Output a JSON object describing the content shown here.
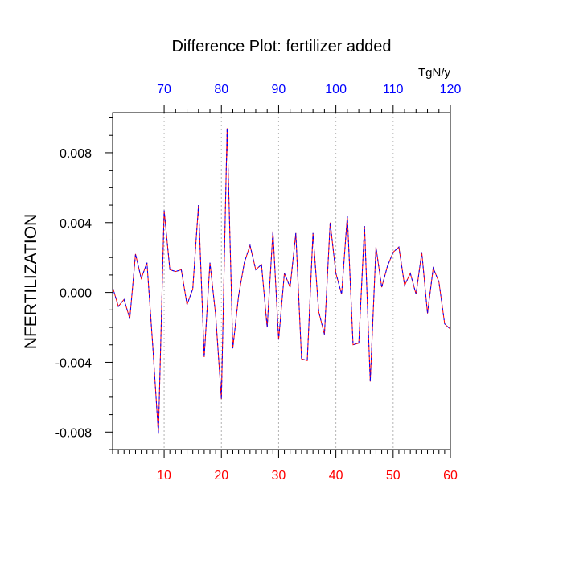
{
  "chart_data": {
    "type": "line",
    "title": "Difference Plot: fertilizer added",
    "ylabel": "NFERTILIZATION",
    "top_axis_unit": "TgN/y",
    "xlim": [
      1,
      60
    ],
    "ylim": [
      -0.009,
      0.0103
    ],
    "x_ticks": [
      10,
      20,
      30,
      40,
      50,
      60
    ],
    "x_tick_labels": [
      "10",
      "20",
      "30",
      "40",
      "50",
      "60"
    ],
    "top_ticks": [
      70,
      80,
      90,
      100,
      110,
      120
    ],
    "top_tick_labels": [
      "70",
      "80",
      "90",
      "100",
      "110",
      "120"
    ],
    "y_ticks": [
      -0.008,
      -0.004,
      0.0,
      0.004,
      0.008
    ],
    "y_tick_labels": [
      "-0.008",
      "-0.004",
      "0.000",
      "0.004",
      "0.008"
    ],
    "grid_x": [
      10,
      20,
      30,
      40,
      50
    ],
    "colors": {
      "bottom_tick_labels": "#ff0000",
      "top_tick_labels": "#0000ff",
      "line_primary": "#ff0000",
      "line_secondary": "#0000ff",
      "axes": "#000000",
      "grid": "#b4b4b4"
    },
    "series": [
      {
        "x": [
          1,
          2,
          3,
          4,
          5,
          6,
          7,
          8,
          9,
          10,
          11,
          12,
          13,
          14,
          15,
          16,
          17,
          18,
          19,
          20,
          21,
          22,
          23,
          24,
          25,
          26,
          27,
          28,
          29,
          30,
          31,
          32,
          33,
          34,
          35,
          36,
          37,
          38,
          39,
          40,
          41,
          42,
          43,
          44,
          45,
          46,
          47,
          48,
          49,
          50,
          51,
          52,
          53,
          54,
          55,
          56,
          57,
          58,
          59,
          60
        ],
        "values": [
          0.0003,
          -0.0008,
          -0.0004,
          -0.0015,
          0.0022,
          0.0008,
          0.0017,
          -0.003,
          -0.0081,
          0.0047,
          0.0013,
          0.0012,
          0.0013,
          -0.0007,
          0.0002,
          0.005,
          -0.0037,
          0.0017,
          -0.0013,
          -0.0061,
          0.0094,
          -0.0032,
          -0.0002,
          0.0017,
          0.0027,
          0.0013,
          0.0016,
          -0.002,
          0.0035,
          -0.0027,
          0.0011,
          0.0003,
          0.0034,
          -0.0038,
          -0.0039,
          0.0034,
          -0.0011,
          -0.0024,
          0.004,
          0.0011,
          -0.0001,
          0.0044,
          -0.003,
          -0.0029,
          0.0038,
          -0.0051,
          0.0026,
          0.0003,
          0.0015,
          0.0023,
          0.0026,
          0.0004,
          0.0011,
          -0.0001,
          0.0023,
          -0.0012,
          0.0014,
          0.0006,
          -0.0018,
          -0.0021
        ]
      }
    ]
  }
}
